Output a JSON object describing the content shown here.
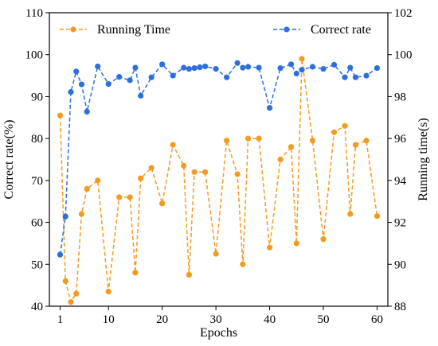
{
  "chart_data": {
    "type": "line",
    "xlabel": "Epochs",
    "ylabel_left": "Correct rate(%)",
    "ylabel_right": "Running time(s)",
    "xlim": [
      -1,
      62
    ],
    "ylim_left": [
      40,
      110
    ],
    "ylim_right": [
      88,
      102
    ],
    "xticks": [
      1,
      10,
      20,
      30,
      40,
      50,
      60
    ],
    "yticks_left": [
      40,
      50,
      60,
      70,
      80,
      90,
      100,
      110
    ],
    "yticks_right": [
      88,
      90,
      92,
      94,
      96,
      98,
      100,
      102
    ],
    "legend": [
      "top-left",
      "top-right"
    ],
    "series": [
      {
        "name": "Running Time",
        "axis": "right",
        "color": "#f39b1f",
        "style": "dashed",
        "marker": "circle",
        "x": [
          1,
          2,
          3,
          4,
          5,
          6,
          8,
          10,
          12,
          14,
          15,
          16,
          18,
          20,
          22,
          24,
          25,
          26,
          28,
          30,
          32,
          34,
          35,
          36,
          38,
          40,
          42,
          44,
          45,
          46,
          48,
          50,
          52,
          54,
          55,
          56,
          58,
          60
        ],
        "y": [
          97.1,
          89.2,
          88.2,
          88.6,
          92.4,
          93.6,
          94.0,
          88.7,
          93.2,
          93.2,
          89.6,
          94.1,
          94.6,
          92.9,
          95.7,
          94.7,
          89.5,
          94.4,
          94.4,
          90.5,
          95.9,
          94.3,
          90.0,
          96.0,
          96.0,
          90.8,
          95.0,
          95.6,
          91.0,
          99.8,
          95.9,
          91.2,
          96.3,
          96.6,
          92.4,
          95.7,
          95.9,
          92.3
        ]
      },
      {
        "name": "Correct rate",
        "axis": "left",
        "color": "#2c6fde",
        "style": "dashed",
        "marker": "circle",
        "x": [
          1,
          2,
          3,
          4,
          5,
          6,
          8,
          10,
          12,
          14,
          15,
          16,
          18,
          20,
          22,
          24,
          25,
          26,
          27,
          28,
          30,
          32,
          34,
          35,
          36,
          38,
          40,
          42,
          44,
          45,
          46,
          48,
          50,
          52,
          54,
          55,
          56,
          58,
          60
        ],
        "y": [
          52.3,
          61.4,
          91.1,
          96.0,
          92.9,
          86.4,
          97.2,
          93.0,
          94.7,
          93.9,
          96.9,
          90.2,
          94.6,
          97.7,
          95.0,
          96.9,
          96.6,
          96.8,
          97.0,
          97.2,
          96.6,
          94.6,
          98.0,
          96.9,
          97.1,
          96.9,
          87.3,
          96.8,
          97.7,
          95.5,
          96.4,
          97.1,
          96.6,
          97.6,
          94.6,
          96.9,
          94.6,
          95.0,
          96.8
        ]
      }
    ]
  }
}
